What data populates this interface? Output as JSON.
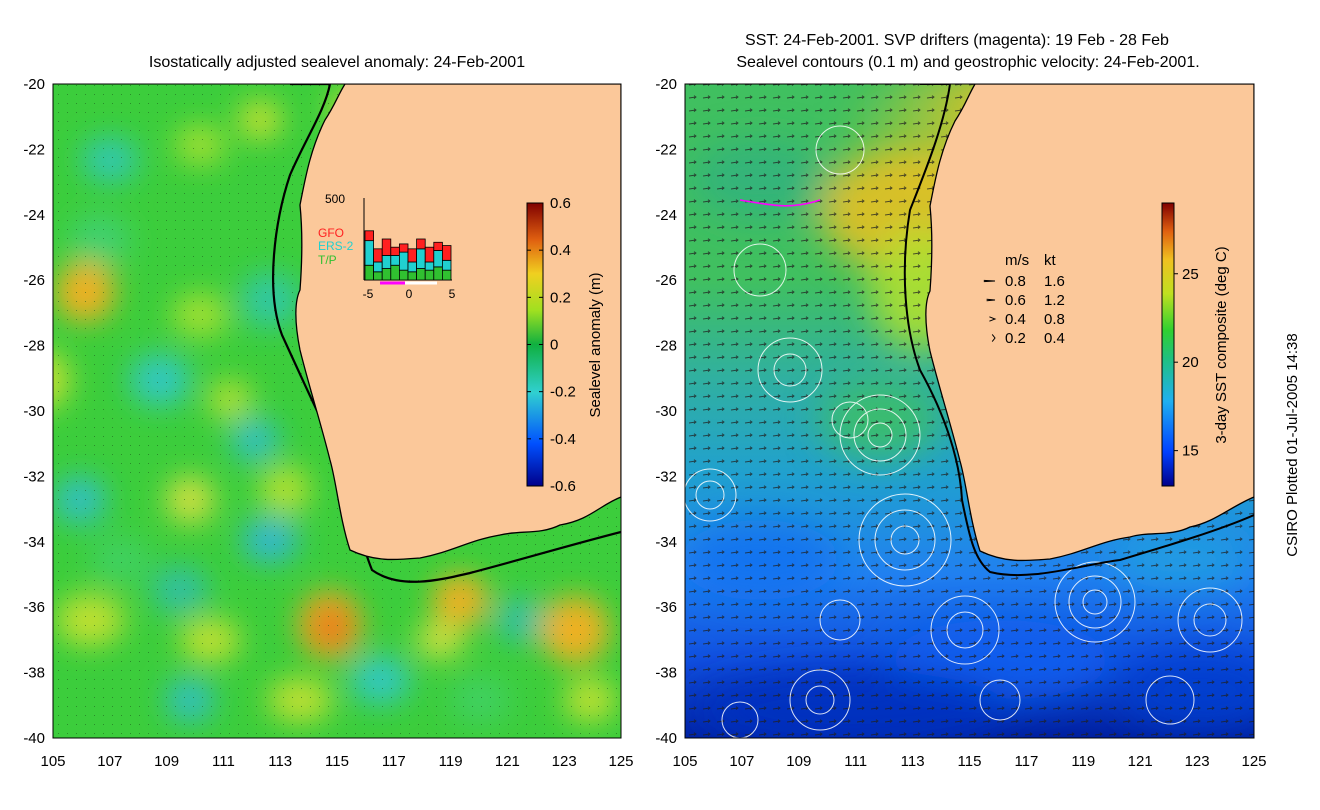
{
  "left_panel": {
    "title": "Isostatically adjusted sealevel anomaly: 24-Feb-2001",
    "colorbar": {
      "label": "Sealevel anomaly (m)",
      "ticks": [
        "0.6",
        "0.4",
        "0.2",
        "0",
        "-0.2",
        "-0.4",
        "-0.6"
      ],
      "range": [
        -0.6,
        0.6
      ]
    },
    "inset": {
      "ymax_label": "500",
      "x_ticks": [
        "-5",
        "0",
        "5"
      ],
      "legend": [
        {
          "name": "GFO",
          "color": "#ff2020"
        },
        {
          "name": "ERS-2",
          "color": "#20d0d0"
        },
        {
          "name": "T/P",
          "color": "#30c030"
        }
      ],
      "bars": [
        {
          "tp": 0.18,
          "ers": 0.3,
          "gfo": 0.12
        },
        {
          "tp": 0.1,
          "ers": 0.12,
          "gfo": 0.16
        },
        {
          "tp": 0.14,
          "ers": 0.16,
          "gfo": 0.2
        },
        {
          "tp": 0.18,
          "ers": 0.12,
          "gfo": 0.1
        },
        {
          "tp": 0.12,
          "ers": 0.22,
          "gfo": 0.1
        },
        {
          "tp": 0.1,
          "ers": 0.12,
          "gfo": 0.16
        },
        {
          "tp": 0.14,
          "ers": 0.24,
          "gfo": 0.12
        },
        {
          "tp": 0.12,
          "ers": 0.1,
          "gfo": 0.18
        },
        {
          "tp": 0.16,
          "ers": 0.2,
          "gfo": 0.1
        },
        {
          "tp": 0.12,
          "ers": 0.12,
          "gfo": 0.18
        }
      ]
    }
  },
  "right_panel": {
    "title_line1": "SST: 24-Feb-2001. SVP drifters (magenta): 19 Feb - 28 Feb",
    "title_line2": "Sealevel contours (0.1 m) and geostrophic velocity: 24-Feb-2001.",
    "colorbar": {
      "label": "3-day SST composite (deg C)",
      "ticks": [
        "25",
        "20",
        "15"
      ],
      "range": [
        13,
        29
      ]
    },
    "velocity_legend": {
      "header_ms": "m/s",
      "header_kt": "kt",
      "rows": [
        {
          "ms": "0.8",
          "kt": "1.6",
          "scale": 0.8
        },
        {
          "ms": "0.6",
          "kt": "1.2",
          "scale": 0.6
        },
        {
          "ms": "0.4",
          "kt": "0.8",
          "scale": 0.4
        },
        {
          "ms": "0.2",
          "kt": "0.4",
          "scale": 0.2
        }
      ]
    }
  },
  "axes": {
    "lat_labels": [
      "-20",
      "-22",
      "-24",
      "-26",
      "-28",
      "-30",
      "-32",
      "-34",
      "-36",
      "-38",
      "-40"
    ],
    "lon_labels": [
      "105",
      "107",
      "109",
      "111",
      "113",
      "115",
      "117",
      "119",
      "121",
      "123",
      "125"
    ],
    "lon_range": [
      105,
      125
    ],
    "lat_range": [
      -40,
      -20
    ]
  },
  "credit": "CSIRO Plotted 01-Jul-2005 14:38",
  "colors": {
    "land": "#fbc89a",
    "coast": "#000000"
  }
}
